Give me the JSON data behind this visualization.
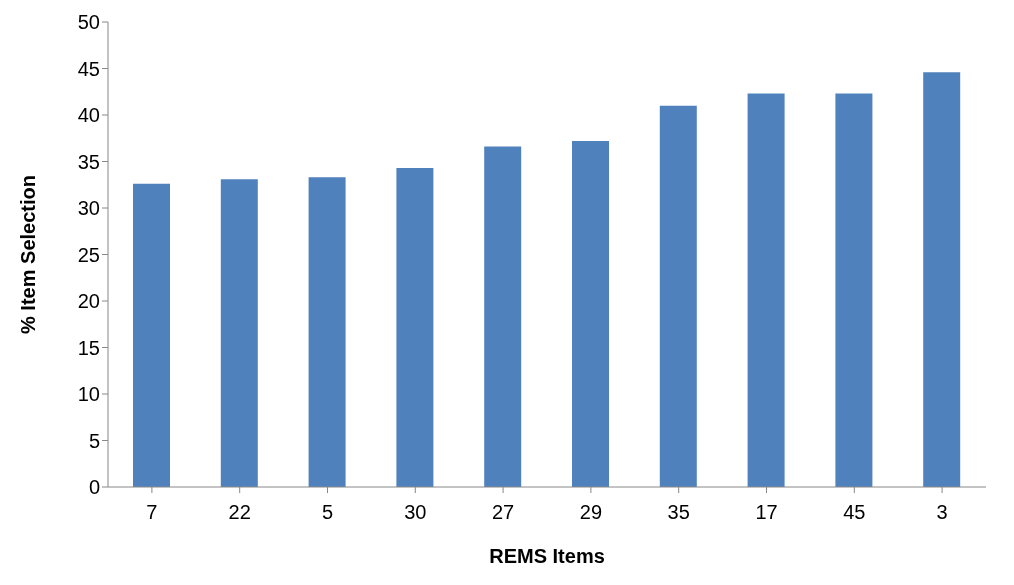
{
  "chart_data": {
    "type": "bar",
    "xlabel": "REMS Items",
    "ylabel": "% Item Selection",
    "categories": [
      "7",
      "22",
      "5",
      "30",
      "27",
      "29",
      "35",
      "17",
      "45",
      "3"
    ],
    "values": [
      32.6,
      33.1,
      33.3,
      34.3,
      36.6,
      37.2,
      41.0,
      42.3,
      42.3,
      44.6
    ],
    "color": "#4f81bd",
    "ylim": [
      0,
      50
    ],
    "yticks": [
      0,
      5,
      10,
      15,
      20,
      25,
      30,
      35,
      40,
      45,
      50
    ],
    "grid": false
  }
}
